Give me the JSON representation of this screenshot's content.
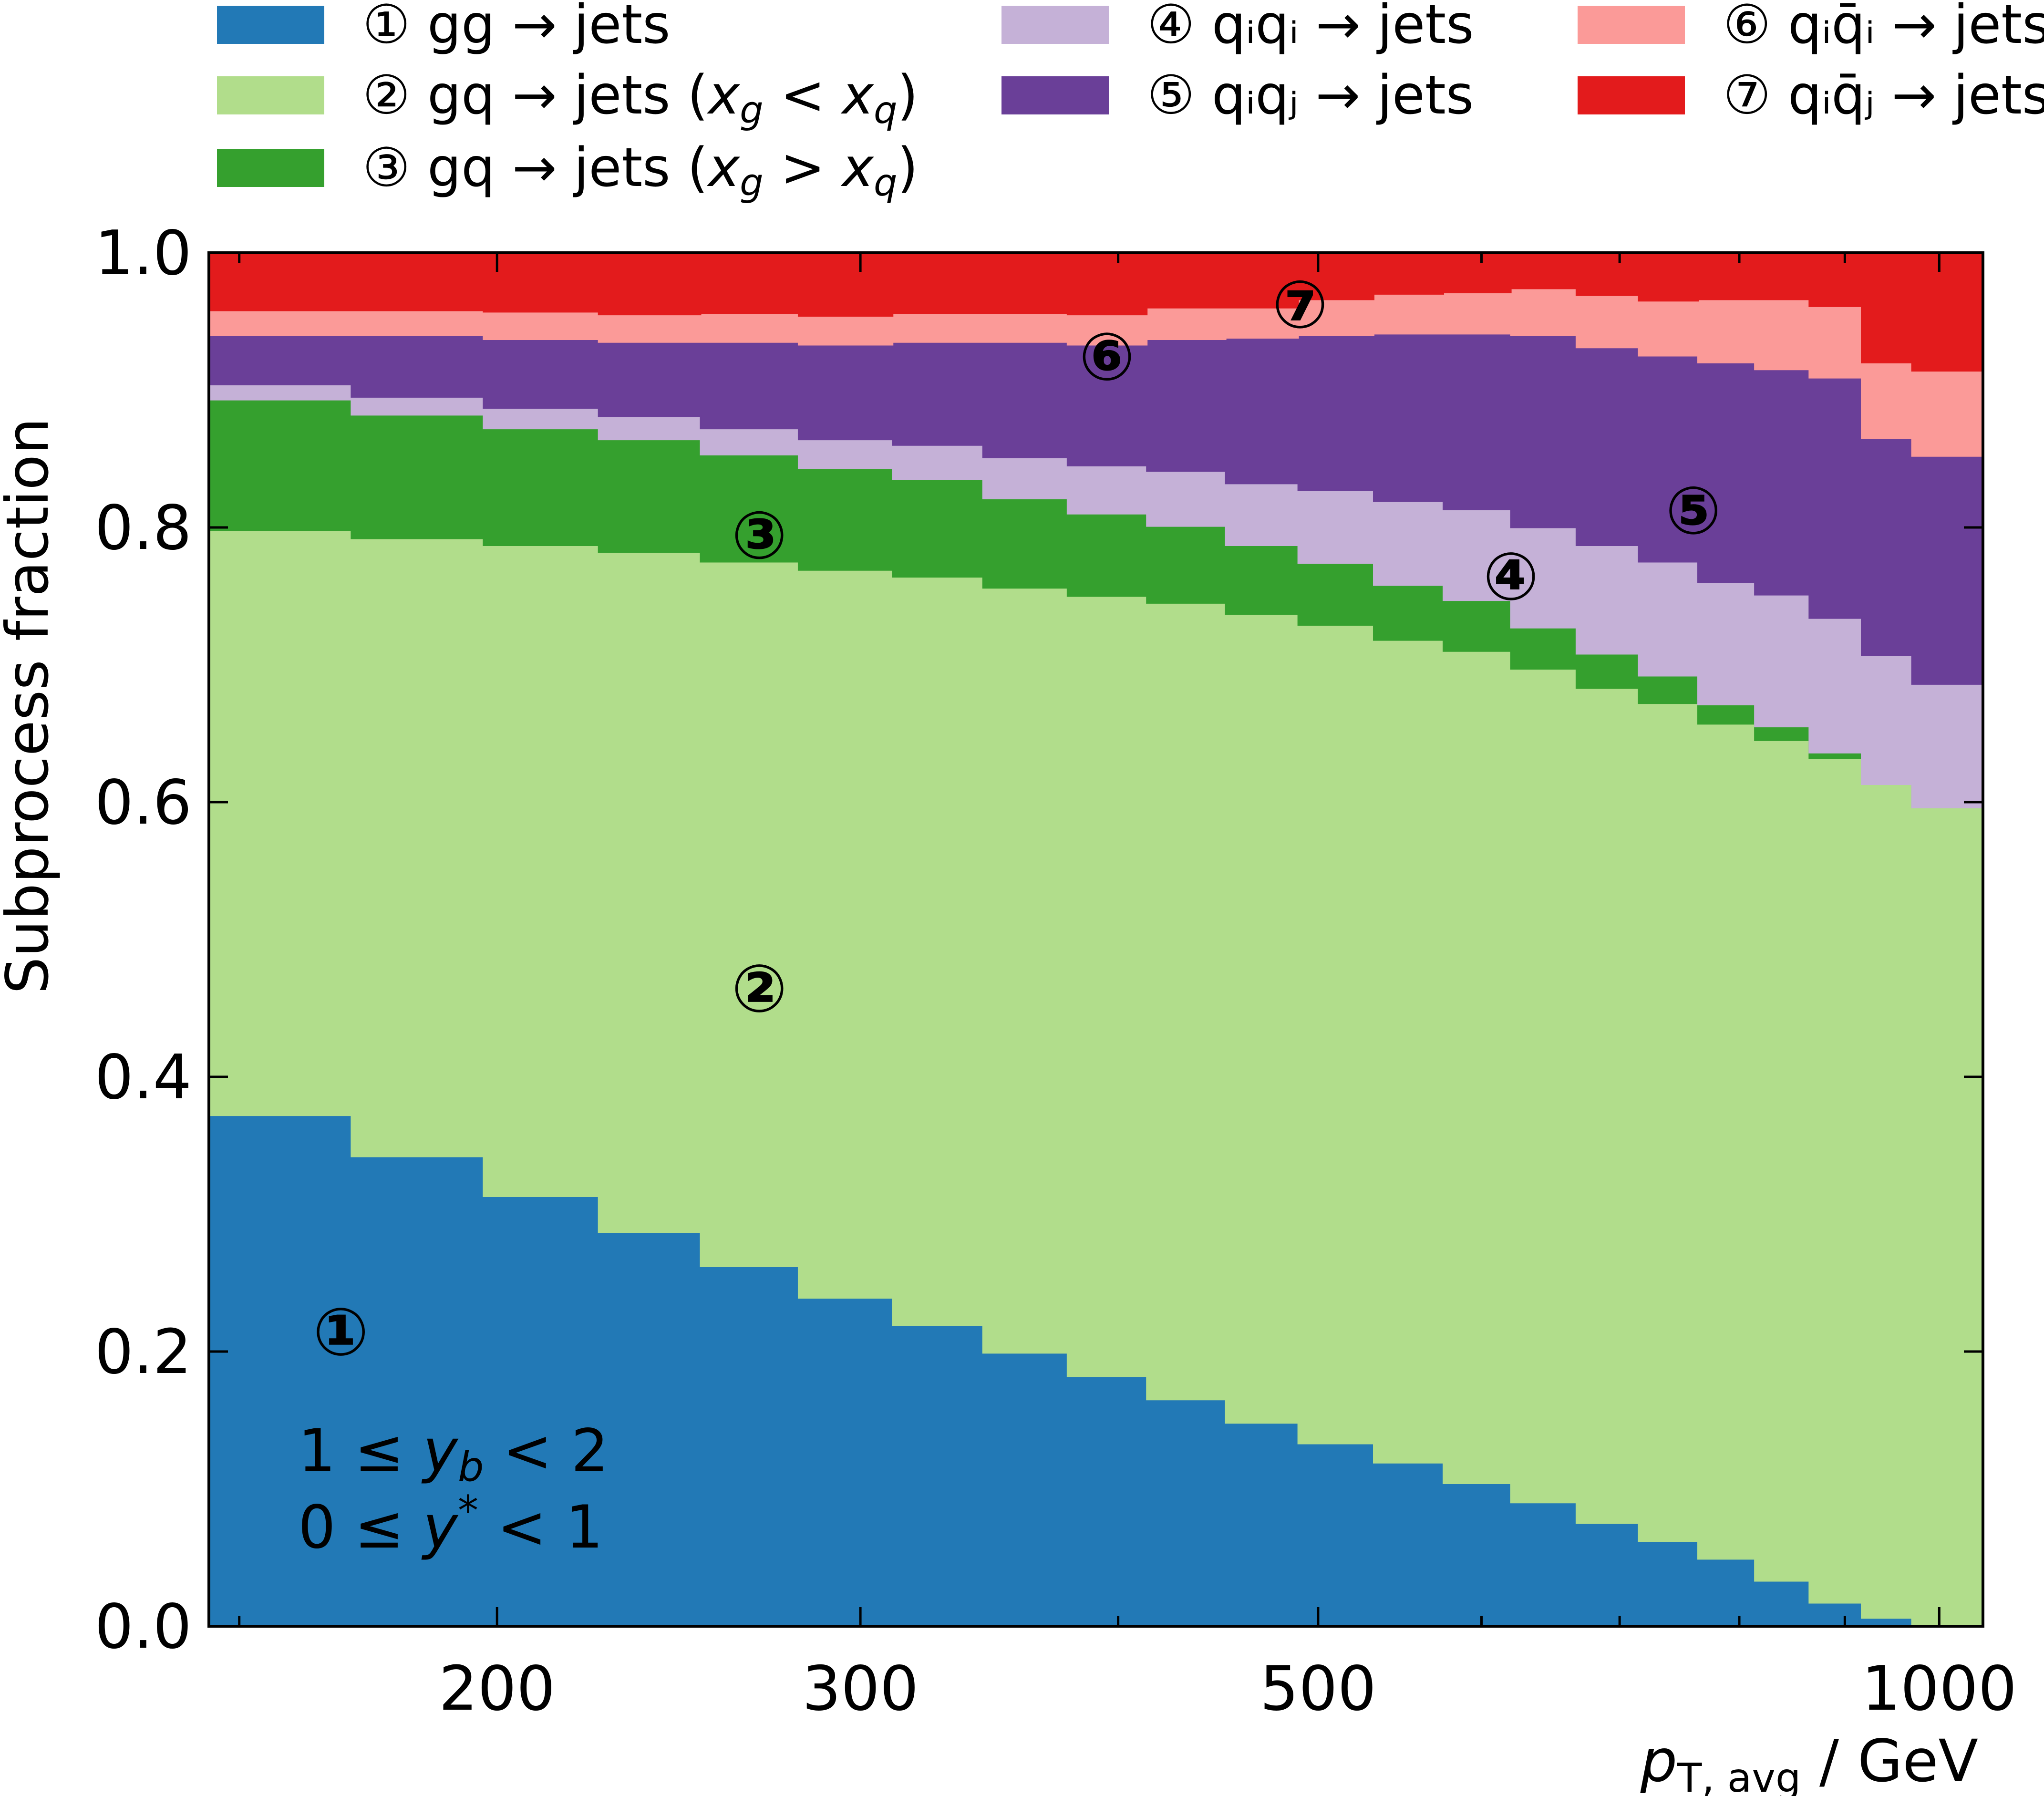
{
  "chart_data": {
    "type": "area",
    "subtype": "stacked-step",
    "xlabel": "p_T,avg / GeV",
    "xlabel_parts": {
      "p": "p",
      "sub": "T, avg",
      "unit": " / GeV"
    },
    "ylabel": "Subprocess fraction",
    "x_scale": "log",
    "xlim": [
      145,
      1050
    ],
    "ylim": [
      0.0,
      1.0
    ],
    "x_ticks": [
      200,
      300,
      500,
      1000
    ],
    "x_tick_labels": [
      "200",
      "300",
      "500",
      "1000"
    ],
    "y_ticks": [
      0.0,
      0.2,
      0.4,
      0.6,
      0.8,
      1.0
    ],
    "y_tick_labels": [
      "0.0",
      "0.2",
      "0.4",
      "0.6",
      "0.8",
      "1.0"
    ],
    "bin_edges": [
      145,
      170,
      197,
      224,
      251,
      280,
      311,
      344,
      378,
      413,
      451,
      489,
      532,
      575,
      620,
      667,
      715,
      764,
      814,
      865,
      917,
      970,
      1050
    ],
    "series": [
      {
        "key": "s1",
        "name": "① gg → jets",
        "color": "#2279b6",
        "values": [
          0.372,
          0.342,
          0.313,
          0.287,
          0.262,
          0.239,
          0.219,
          0.199,
          0.182,
          0.165,
          0.148,
          0.133,
          0.119,
          0.104,
          0.09,
          0.075,
          0.062,
          0.049,
          0.033,
          0.017,
          0.006,
          0.0
        ]
      },
      {
        "key": "s2",
        "name": "② gq → jets (x_g < x_q)",
        "color": "#b1dd8b",
        "values": [
          0.426,
          0.45,
          0.474,
          0.495,
          0.513,
          0.53,
          0.545,
          0.557,
          0.568,
          0.58,
          0.589,
          0.596,
          0.599,
          0.606,
          0.607,
          0.608,
          0.61,
          0.608,
          0.612,
          0.615,
          0.607,
          0.596
        ]
      },
      {
        "key": "s3",
        "name": "③ gq → jets (x_g > x_q)",
        "color": "#35a02e",
        "values": [
          0.095,
          0.09,
          0.085,
          0.082,
          0.078,
          0.074,
          0.071,
          0.065,
          0.06,
          0.056,
          0.05,
          0.045,
          0.04,
          0.037,
          0.03,
          0.025,
          0.02,
          0.014,
          0.01,
          0.004,
          0.0,
          0.0
        ]
      },
      {
        "key": "s4",
        "name": "④ qᵢqᵢ → jets",
        "color": "#c5b1d7",
        "values": [
          0.011,
          0.013,
          0.015,
          0.017,
          0.019,
          0.021,
          0.025,
          0.03,
          0.035,
          0.04,
          0.045,
          0.053,
          0.061,
          0.066,
          0.073,
          0.079,
          0.083,
          0.089,
          0.096,
          0.098,
          0.094,
          0.09
        ]
      },
      {
        "key": "s5",
        "name": "⑤ qᵢqⱼ → jets",
        "color": "#6a3f98",
        "values": [
          0.036,
          0.045,
          0.05,
          0.054,
          0.063,
          0.069,
          0.075,
          0.084,
          0.088,
          0.096,
          0.106,
          0.113,
          0.122,
          0.128,
          0.14,
          0.144,
          0.15,
          0.16,
          0.164,
          0.175,
          0.158,
          0.166
        ]
      },
      {
        "key": "s6",
        "name": "⑥ qᵢq̄ᵢ → jets",
        "color": "#fb9a98",
        "values": [
          0.018,
          0.018,
          0.02,
          0.02,
          0.021,
          0.021,
          0.021,
          0.021,
          0.022,
          0.023,
          0.022,
          0.026,
          0.029,
          0.03,
          0.034,
          0.038,
          0.04,
          0.046,
          0.051,
          0.052,
          0.055,
          0.062
        ]
      },
      {
        "key": "s7",
        "name": "⑦ qᵢq̄ⱼ → jets",
        "color": "#e31b1c",
        "values": [
          0.042,
          0.042,
          0.043,
          0.045,
          0.044,
          0.046,
          0.044,
          0.044,
          0.045,
          0.04,
          0.04,
          0.034,
          0.03,
          0.029,
          0.026,
          0.031,
          0.035,
          0.034,
          0.034,
          0.039,
          0.08,
          0.086
        ]
      }
    ],
    "region_markers": [
      {
        "label": "①",
        "x": 168,
        "y": 0.215
      },
      {
        "label": "②",
        "x": 268,
        "y": 0.465
      },
      {
        "label": "③",
        "x": 268,
        "y": 0.795
      },
      {
        "label": "④",
        "x": 620,
        "y": 0.765
      },
      {
        "label": "⑤",
        "x": 760,
        "y": 0.813
      },
      {
        "label": "⑥",
        "x": 395,
        "y": 0.925
      },
      {
        "label": "⑦",
        "x": 490,
        "y": 0.963
      }
    ],
    "annotations": [
      "1 ≤ y_b < 2",
      "0 ≤ y* < 1"
    ],
    "annotation_parts": [
      {
        "pre": "1 ≤ ",
        "var": "y",
        "sub": "b",
        "sup": "",
        "post": " < 2"
      },
      {
        "pre": "0 ≤ ",
        "var": "y",
        "sub": "",
        "sup": "*",
        "post": " < 1"
      }
    ],
    "legend": {
      "placement": "top",
      "columns": 3
    },
    "legend_entries": [
      {
        "key": "s1",
        "num": "①",
        "text": "gg",
        "tail": " → jets"
      },
      {
        "key": "s2",
        "num": "②",
        "text": "gq",
        "tail": " → jets (",
        "math": [
          "x",
          "g",
          " < ",
          "x",
          "q"
        ],
        "close": ")"
      },
      {
        "key": "s3",
        "num": "③",
        "text": "gq",
        "tail": " → jets (",
        "math": [
          "x",
          "g",
          " > ",
          "x",
          "q"
        ],
        "close": ")"
      },
      {
        "key": "s4",
        "num": "④",
        "text": "qᵢqᵢ",
        "tail": " → jets"
      },
      {
        "key": "s5",
        "num": "⑤",
        "text": "qᵢqⱼ",
        "tail": " → jets"
      },
      {
        "key": "s6",
        "num": "⑥",
        "text": "qᵢq̄ᵢ",
        "tail": " → jets"
      },
      {
        "key": "s7",
        "num": "⑦",
        "text": "qᵢq̄ⱼ",
        "tail": " → jets"
      }
    ],
    "grid": false
  }
}
